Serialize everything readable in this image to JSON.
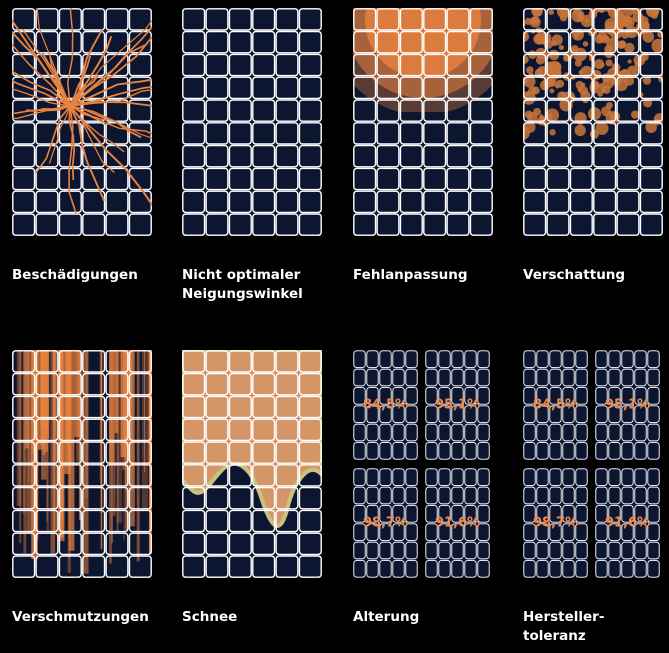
{
  "items": [
    {
      "label_lines": [
        "Beschädigungen"
      ]
    },
    {
      "label_lines": [
        "Nicht optimaler",
        "Neigungswinkel"
      ]
    },
    {
      "label_lines": [
        "Fehlanpassung"
      ]
    },
    {
      "label_lines": [
        "Verschattung"
      ]
    },
    {
      "label_lines": [
        "Verschmutzungen"
      ]
    },
    {
      "label_lines": [
        "Schnee"
      ]
    },
    {
      "label_lines": [
        "Alterung"
      ],
      "values": [
        "84,5%",
        "95,1%",
        "98,7%",
        "91,6%"
      ]
    },
    {
      "label_lines": [
        "Hersteller-",
        "toleranz"
      ],
      "values": [
        "84,5%",
        "95,1%",
        "98,7%",
        "91,6%"
      ]
    }
  ]
}
